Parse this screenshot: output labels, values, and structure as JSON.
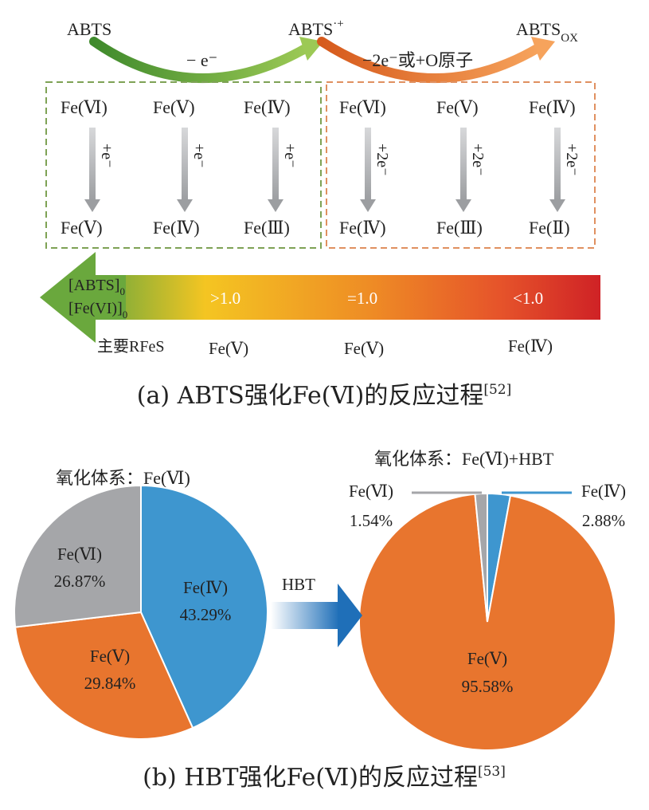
{
  "part_a": {
    "abts": "ABTS",
    "abts_radical": "ABTS",
    "abts_radical_sup": "·+",
    "abts_ox": "ABTS",
    "abts_ox_sub": "OX",
    "step1": "− e⁻",
    "step2": "−2e⁻或+O原子",
    "left_box": {
      "top": [
        "Fe(Ⅵ)",
        "Fe(Ⅴ)",
        "Fe(Ⅳ)"
      ],
      "arrow_label": "+e⁻",
      "bottom": [
        "Fe(Ⅴ)",
        "Fe(Ⅳ)",
        "Fe(Ⅲ)"
      ]
    },
    "right_box": {
      "top": [
        "Fe(Ⅵ)",
        "Fe(Ⅴ)",
        "Fe(Ⅳ)"
      ],
      "arrow_label": "+2e⁻",
      "bottom": [
        "Fe(Ⅳ)",
        "Fe(Ⅲ)",
        "Fe(Ⅱ)"
      ]
    },
    "ratio_num": "[ABTS]",
    "ratio_num_sub": "0",
    "ratio_den": "[Fe(VI)]",
    "ratio_den_sub": "0",
    "gradient_labels": [
      ">1.0",
      "=1.0",
      "<1.0"
    ],
    "rfes_label": "主要RFeS",
    "rfes_values": [
      "Fe(Ⅴ)",
      "Fe(Ⅴ)",
      "Fe(Ⅳ)"
    ],
    "caption": "(a) ABTS强化Fe(Ⅵ)的反应过程",
    "caption_ref": "[52]",
    "colors": {
      "green": "#6fa33a",
      "orange": "#e8752a",
      "red": "#d42a26",
      "yellow": "#f3c42a"
    }
  },
  "part_b": {
    "left_title": "氧化体系：Fe(Ⅵ)",
    "right_title": "氧化体系：Fe(Ⅵ)+HBT",
    "arrow_label": "HBT",
    "chart_data": [
      {
        "type": "pie",
        "title": "氧化体系：Fe(Ⅵ)",
        "categories": [
          "Fe(Ⅳ)",
          "Fe(Ⅴ)",
          "Fe(Ⅵ)"
        ],
        "values": [
          43.29,
          29.84,
          26.87
        ],
        "value_labels": [
          "43.29%",
          "29.84%",
          "26.87%"
        ],
        "colors": [
          "#3e96cf",
          "#e8752e",
          "#a5a6a9"
        ]
      },
      {
        "type": "pie",
        "title": "氧化体系：Fe(Ⅵ)+HBT",
        "categories": [
          "Fe(Ⅳ)",
          "Fe(Ⅴ)",
          "Fe(Ⅵ)"
        ],
        "values": [
          2.88,
          95.58,
          1.54
        ],
        "value_labels": [
          "2.88%",
          "95.58%",
          "1.54%"
        ],
        "colors": [
          "#3e96cf",
          "#e8752e",
          "#a5a6a9"
        ]
      }
    ],
    "caption": "(b) HBT强化Fe(Ⅵ)的反应过程",
    "caption_ref": "[53]"
  }
}
